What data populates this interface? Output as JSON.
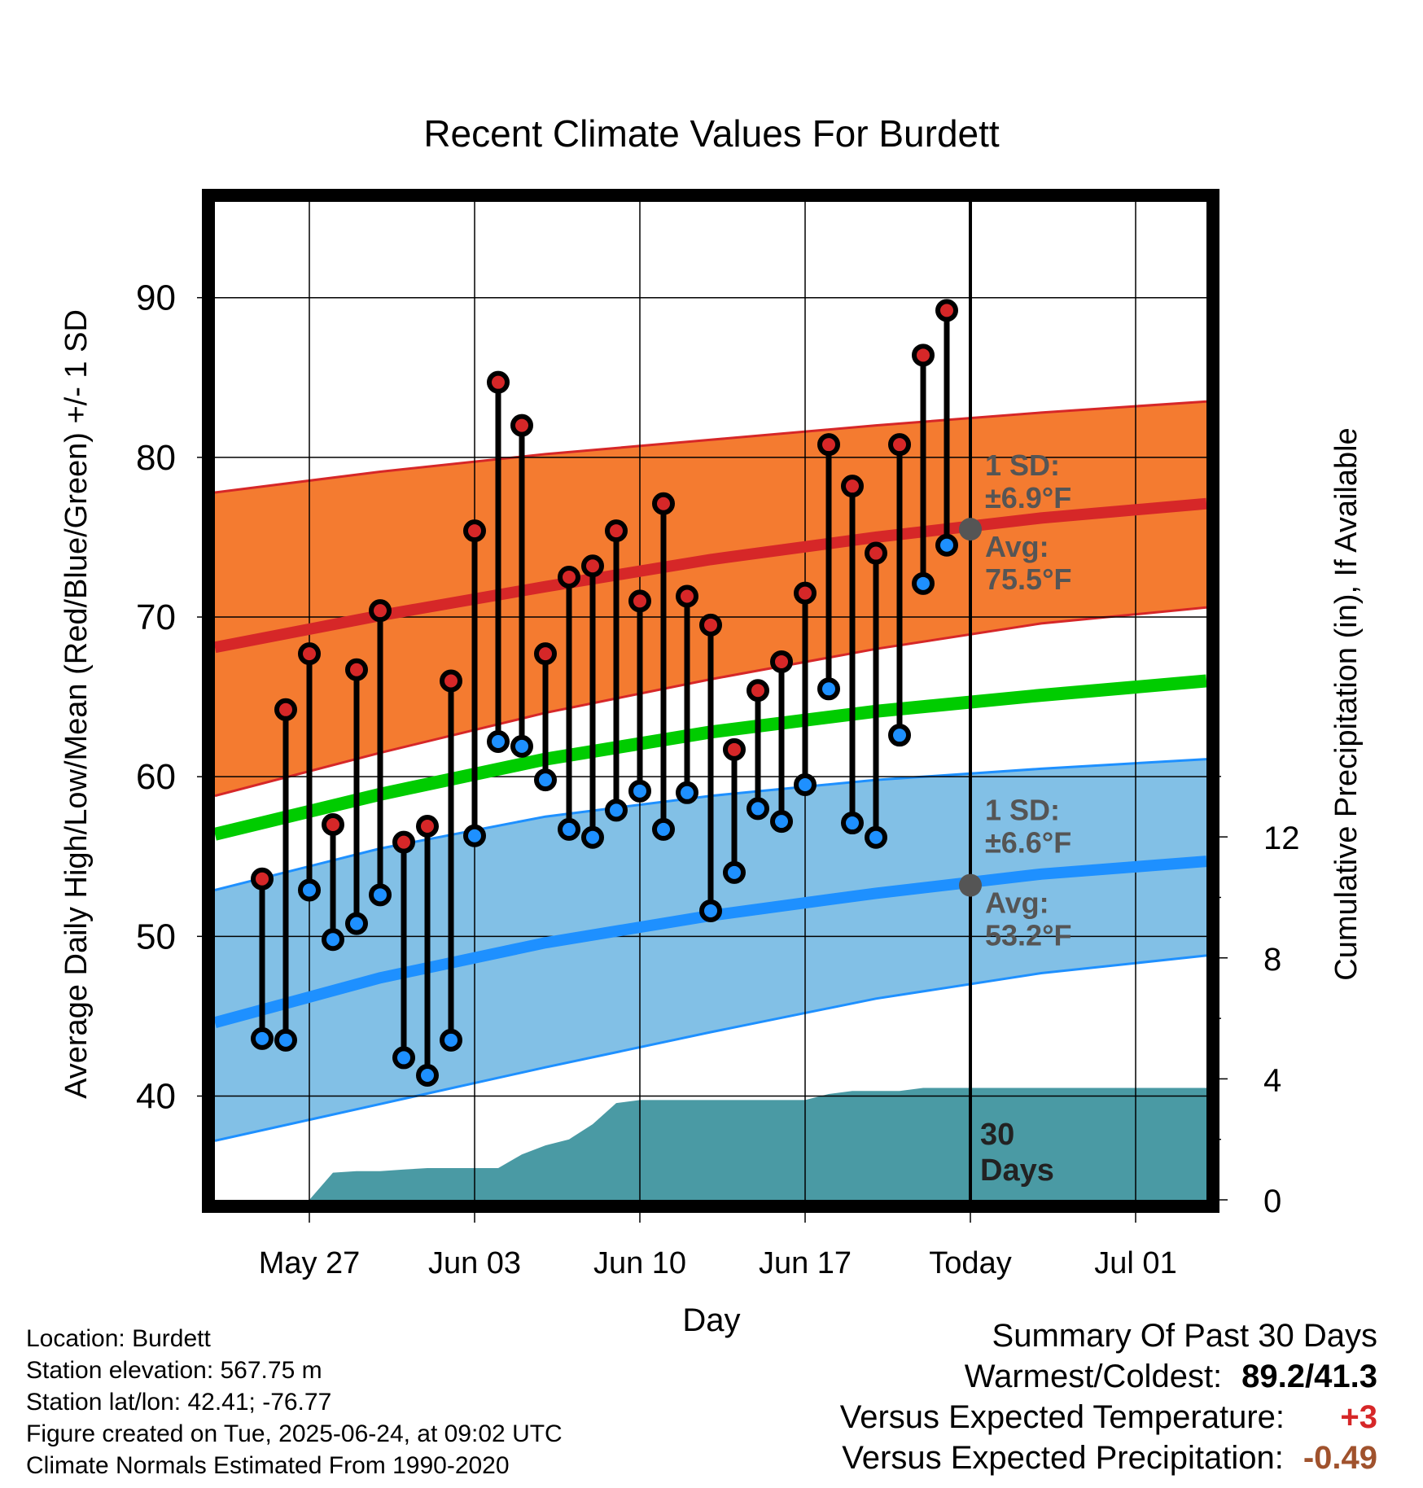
{
  "chart_data": {
    "type": "line",
    "title": "Recent Climate Values For Burdett",
    "xlabel": "Day",
    "ylabel": "Average Daily High/Low/Mean (Red/Blue/Green) +/- 1 SD",
    "y2label": "Cumulative Precipitation (in), If Available",
    "ylim": [
      33.5,
      96
    ],
    "y2lim": [
      0,
      33
    ],
    "xlim": [
      "2025-05-23",
      "2025-07-04"
    ],
    "x_ticks": [
      {
        "date": "2025-05-27",
        "label": "May 27"
      },
      {
        "date": "2025-06-03",
        "label": "Jun 03"
      },
      {
        "date": "2025-06-10",
        "label": "Jun 10"
      },
      {
        "date": "2025-06-17",
        "label": "Jun 17"
      },
      {
        "date": "2025-06-24",
        "label": "Today"
      },
      {
        "date": "2025-07-01",
        "label": "Jul 01"
      }
    ],
    "y_ticks": [
      40,
      50,
      60,
      70,
      80,
      90
    ],
    "y2_ticks": [
      0,
      4,
      8,
      12
    ],
    "grid": true,
    "today": "2025-06-24",
    "today_label_line1": "30",
    "today_label_line2": "Days",
    "normals": {
      "dates": [
        "2025-05-23",
        "2025-05-30",
        "2025-06-06",
        "2025-06-13",
        "2025-06-20",
        "2025-06-27",
        "2025-07-04"
      ],
      "high_avg": [
        68.1,
        70.1,
        71.9,
        73.6,
        75.0,
        76.2,
        77.1
      ],
      "high_upper": [
        77.8,
        79.1,
        80.2,
        81.1,
        82.0,
        82.8,
        83.5
      ],
      "high_lower": [
        58.8,
        61.5,
        64.0,
        66.1,
        68.0,
        69.6,
        70.6
      ],
      "mean_avg": [
        56.4,
        58.9,
        61.1,
        62.8,
        64.1,
        65.1,
        66.0
      ],
      "low_avg": [
        44.6,
        47.4,
        49.6,
        51.3,
        52.7,
        53.9,
        54.7
      ],
      "low_upper": [
        52.9,
        55.5,
        57.5,
        58.8,
        59.8,
        60.5,
        61.1
      ],
      "low_lower": [
        37.2,
        39.5,
        41.8,
        44.0,
        46.1,
        47.7,
        48.8
      ]
    },
    "today_high_avg_label": "Avg:",
    "today_high_avg_value": "75.5°F",
    "today_high_sd_label": "1 SD:",
    "today_high_sd_value": "±6.9°F",
    "today_low_avg_label": "Avg:",
    "today_low_avg_value": "53.2°F",
    "today_low_sd_label": "1 SD:",
    "today_low_sd_value": "±6.6°F",
    "today_high_avg": 75.5,
    "today_low_avg": 53.2,
    "series": [
      {
        "name": "High",
        "color": "#d62728",
        "dates": [
          "2025-05-25",
          "2025-05-26",
          "2025-05-27",
          "2025-05-28",
          "2025-05-29",
          "2025-05-30",
          "2025-05-31",
          "2025-06-01",
          "2025-06-02",
          "2025-06-03",
          "2025-06-04",
          "2025-06-05",
          "2025-06-06",
          "2025-06-07",
          "2025-06-08",
          "2025-06-09",
          "2025-06-10",
          "2025-06-11",
          "2025-06-12",
          "2025-06-13",
          "2025-06-14",
          "2025-06-15",
          "2025-06-16",
          "2025-06-17",
          "2025-06-18",
          "2025-06-19",
          "2025-06-20",
          "2025-06-21",
          "2025-06-22",
          "2025-06-23"
        ],
        "values": [
          53.6,
          64.2,
          67.7,
          57.0,
          66.7,
          70.4,
          55.9,
          56.9,
          66.0,
          75.4,
          84.7,
          82.0,
          67.7,
          72.5,
          73.2,
          75.4,
          71.0,
          77.1,
          71.3,
          69.5,
          61.7,
          65.4,
          67.2,
          71.5,
          80.8,
          78.2,
          74.0,
          80.8,
          86.4,
          89.2
        ]
      },
      {
        "name": "Low",
        "color": "#1e90ff",
        "dates": [
          "2025-05-25",
          "2025-05-26",
          "2025-05-27",
          "2025-05-28",
          "2025-05-29",
          "2025-05-30",
          "2025-05-31",
          "2025-06-01",
          "2025-06-02",
          "2025-06-03",
          "2025-06-04",
          "2025-06-05",
          "2025-06-06",
          "2025-06-07",
          "2025-06-08",
          "2025-06-09",
          "2025-06-10",
          "2025-06-11",
          "2025-06-12",
          "2025-06-13",
          "2025-06-14",
          "2025-06-15",
          "2025-06-16",
          "2025-06-17",
          "2025-06-18",
          "2025-06-19",
          "2025-06-20",
          "2025-06-21",
          "2025-06-22",
          "2025-06-23"
        ],
        "values": [
          43.6,
          43.5,
          52.9,
          49.8,
          50.8,
          52.6,
          42.4,
          41.3,
          43.5,
          56.3,
          62.2,
          61.9,
          59.8,
          56.7,
          56.2,
          57.9,
          59.1,
          56.7,
          59.0,
          51.6,
          54.0,
          58.0,
          57.2,
          59.5,
          65.5,
          57.1,
          56.2,
          62.6,
          72.1,
          74.5
        ]
      }
    ],
    "precipitation": {
      "name": "Cumulative Precipitation",
      "color": "#4a9aa4",
      "dates": [
        "2025-05-26",
        "2025-05-27",
        "2025-05-28",
        "2025-05-29",
        "2025-05-30",
        "2025-05-31",
        "2025-06-01",
        "2025-06-02",
        "2025-06-03",
        "2025-06-04",
        "2025-06-05",
        "2025-06-06",
        "2025-06-07",
        "2025-06-08",
        "2025-06-09",
        "2025-06-10",
        "2025-06-11",
        "2025-06-12",
        "2025-06-13",
        "2025-06-14",
        "2025-06-15",
        "2025-06-16",
        "2025-06-17",
        "2025-06-18",
        "2025-06-19",
        "2025-06-20",
        "2025-06-21",
        "2025-06-22",
        "2025-06-23",
        "2025-06-24",
        "2025-07-04"
      ],
      "values": [
        0,
        0,
        0.9,
        0.95,
        0.95,
        1.0,
        1.05,
        1.05,
        1.05,
        1.05,
        1.5,
        1.8,
        2.0,
        2.5,
        3.2,
        3.3,
        3.3,
        3.3,
        3.3,
        3.3,
        3.3,
        3.3,
        3.3,
        3.5,
        3.6,
        3.6,
        3.6,
        3.7,
        3.7,
        3.7,
        3.7
      ]
    }
  },
  "footer": {
    "location": "Location: Burdett",
    "elevation": "Station elevation: 567.75 m",
    "latlon": "Station lat/lon: 42.41; -76.77",
    "created": "Figure created on Tue, 2025-06-24, at 09:02 UTC",
    "normals": "Climate Normals Estimated From 1990-2020"
  },
  "summary": {
    "title": "Summary Of Past 30 Days",
    "warmest_label": "Warmest/Coldest:",
    "warmest_value": "89.2/41.3",
    "temp_label": "Versus Expected Temperature:",
    "temp_value": "+3",
    "temp_color": "#d62728",
    "precip_label": "Versus Expected Precipitation:",
    "precip_value": "-0.49",
    "precip_color": "#a0522d"
  }
}
